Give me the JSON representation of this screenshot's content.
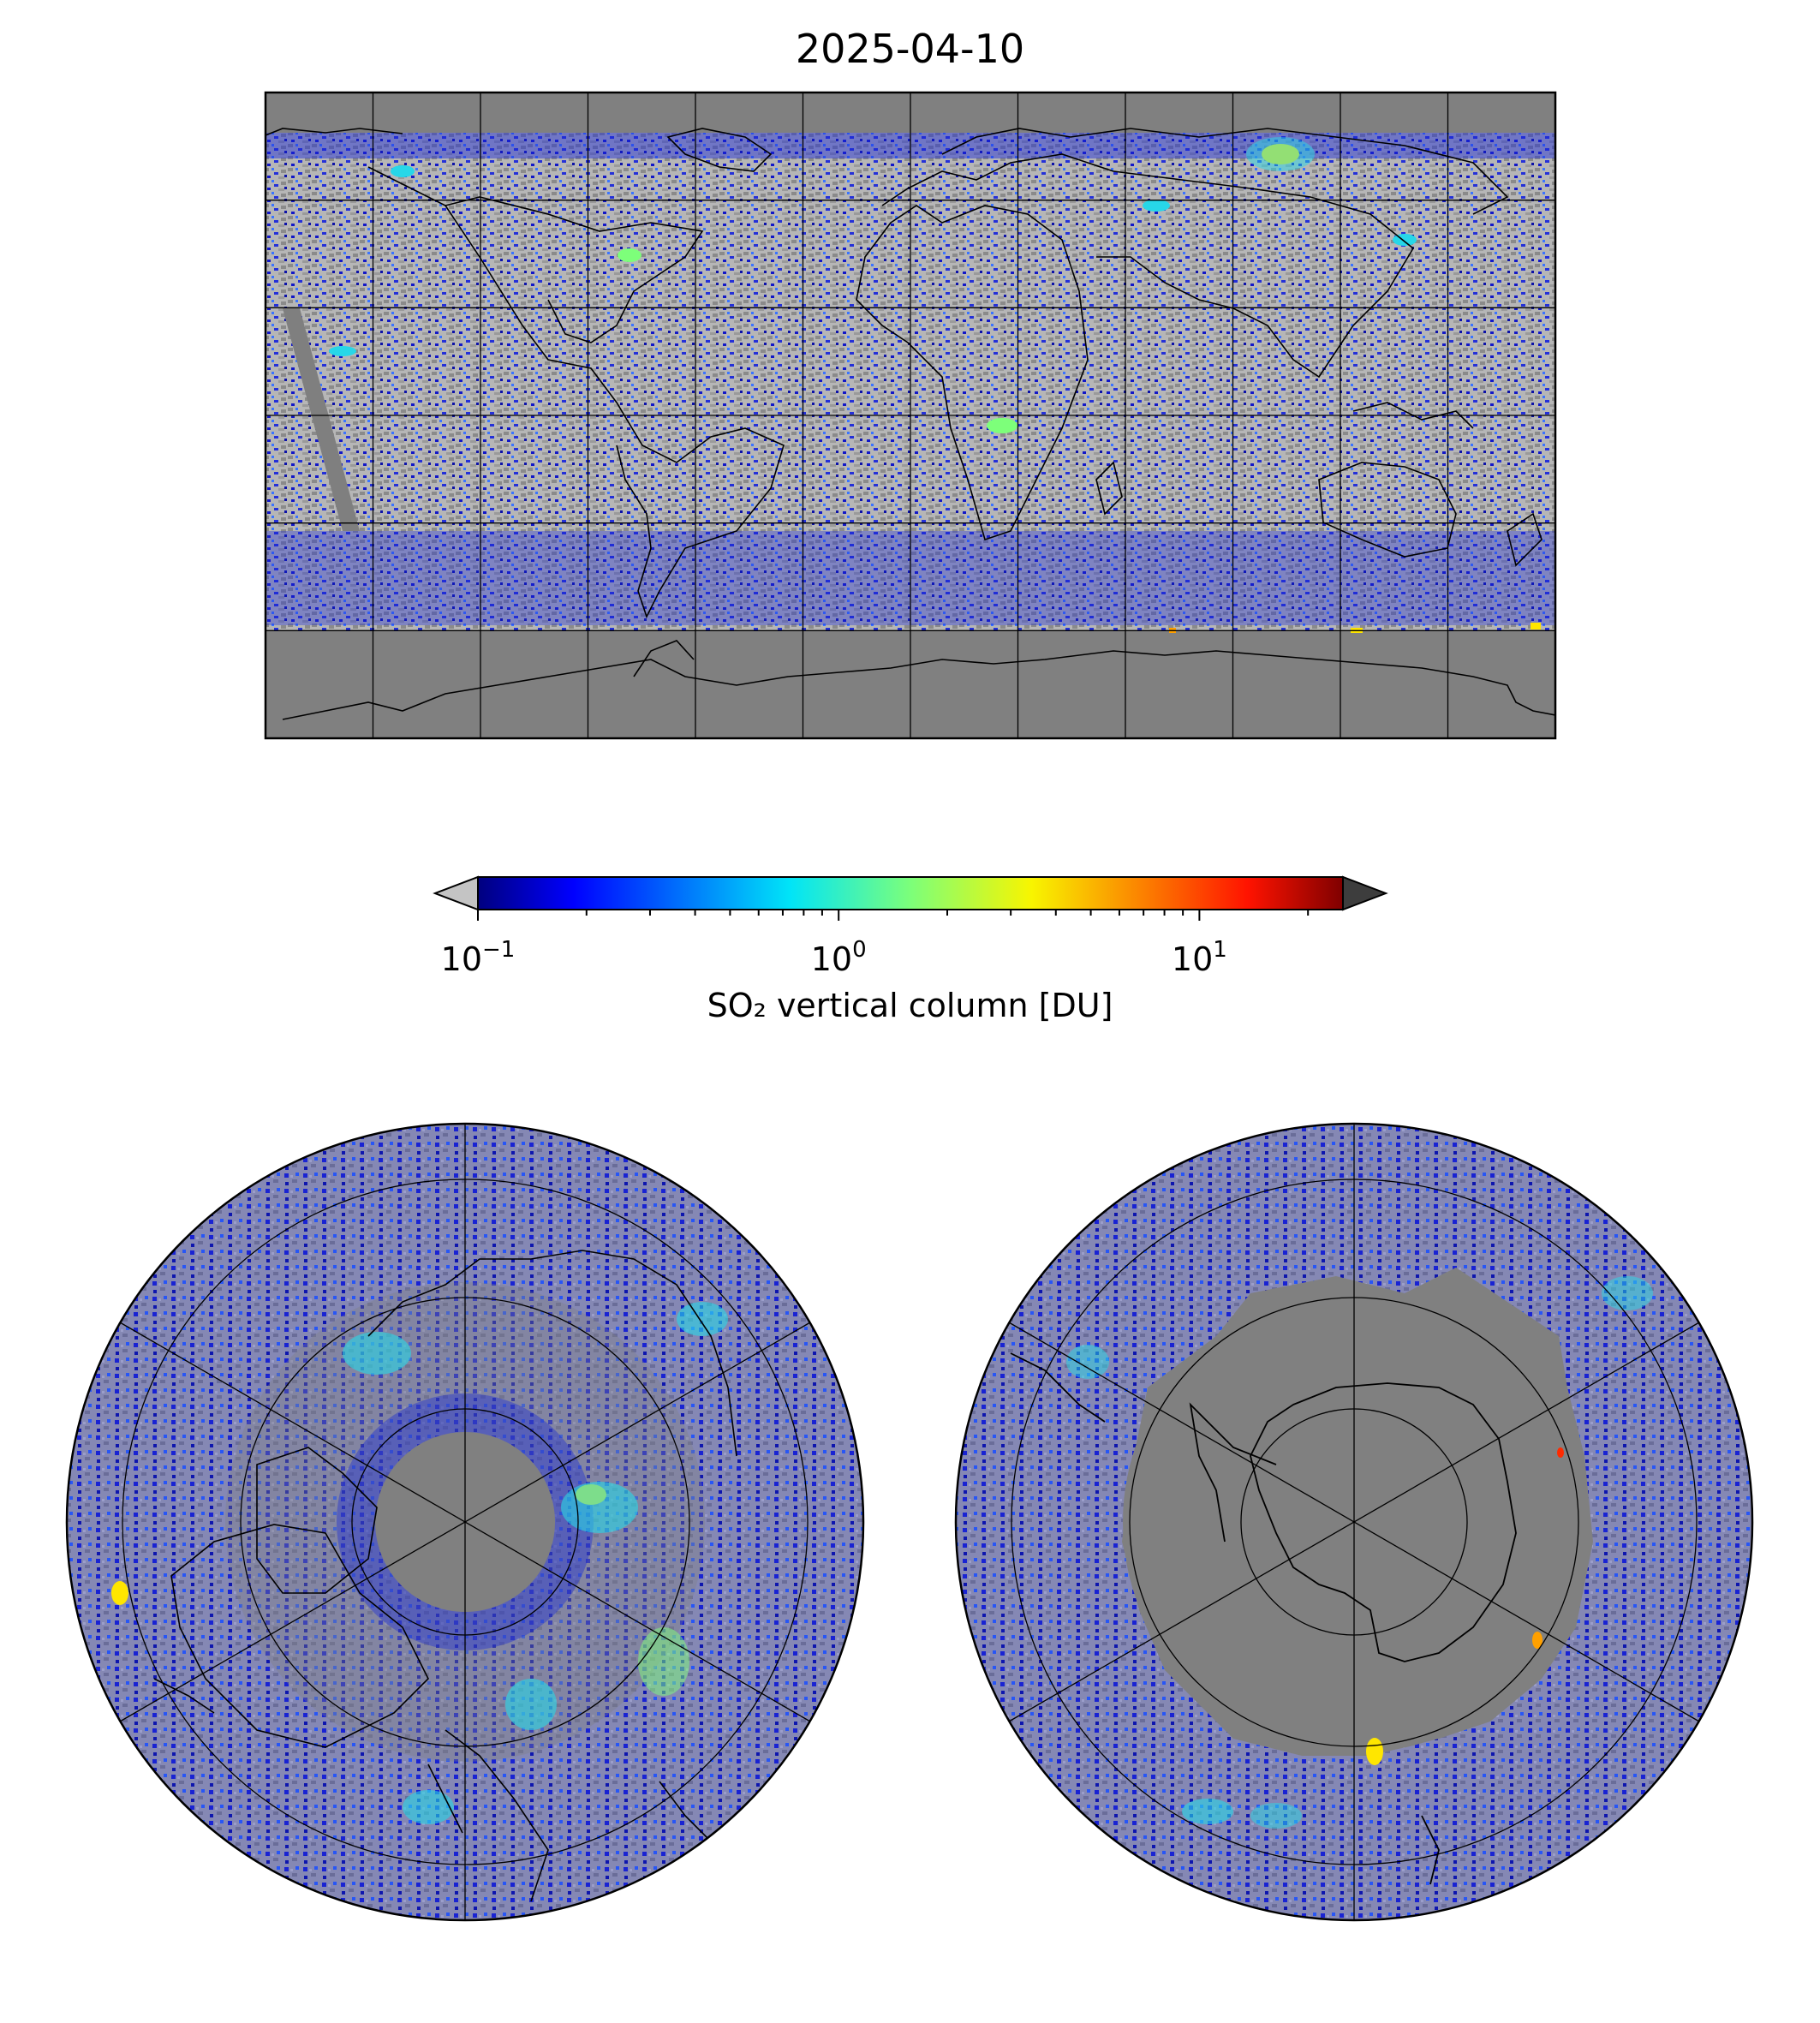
{
  "title": "2025-04-10",
  "colorbar": {
    "label": "SO₂ vertical column [DU]",
    "scale": "log",
    "range": [
      0.1,
      25
    ],
    "extend": "both",
    "under_color": "#c4c4c4",
    "over_color": "#3d3d3d",
    "colormap": "jet",
    "ticks": [
      {
        "value": 0.1,
        "base": "10",
        "exp": "−1"
      },
      {
        "value": 1,
        "base": "10",
        "exp": "0"
      },
      {
        "value": 10,
        "base": "10",
        "exp": "1"
      }
    ]
  },
  "colors": {
    "no_data": "#808080",
    "below_min": "#bdbdbd",
    "low": "#0b10d8",
    "mid_low": "#1a5cff",
    "mid": "#27d7e8",
    "mid_high": "#7dff7a",
    "high": "#ffe600",
    "peak": "#ff2a00"
  },
  "maps": [
    {
      "name": "global",
      "projection": "equirectangular",
      "graticule_step_deg": 30
    },
    {
      "name": "north-polar",
      "projection": "north polar stereographic",
      "center": "North Pole"
    },
    {
      "name": "south-polar",
      "projection": "south polar stereographic",
      "center": "South Pole"
    }
  ]
}
